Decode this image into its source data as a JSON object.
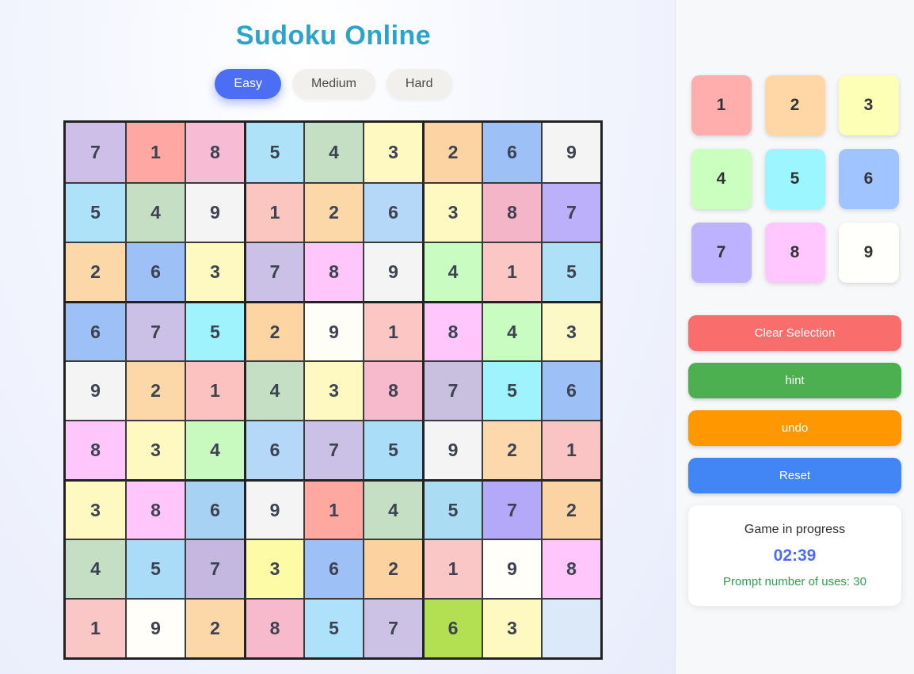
{
  "header": {
    "title": "Sudoku Online"
  },
  "difficulty": {
    "options": [
      {
        "label": "Easy",
        "active": true
      },
      {
        "label": "Medium",
        "active": false
      },
      {
        "label": "Hard",
        "active": false
      }
    ]
  },
  "board": {
    "values": [
      [
        "7",
        "1",
        "8",
        "5",
        "4",
        "3",
        "2",
        "6",
        "9"
      ],
      [
        "5",
        "4",
        "9",
        "1",
        "2",
        "6",
        "3",
        "8",
        "7"
      ],
      [
        "2",
        "6",
        "3",
        "7",
        "8",
        "9",
        "4",
        "1",
        "5"
      ],
      [
        "6",
        "7",
        "5",
        "2",
        "9",
        "1",
        "8",
        "4",
        "3"
      ],
      [
        "9",
        "2",
        "1",
        "4",
        "3",
        "8",
        "7",
        "5",
        "6"
      ],
      [
        "8",
        "3",
        "4",
        "6",
        "7",
        "5",
        "9",
        "2",
        "1"
      ],
      [
        "3",
        "8",
        "6",
        "9",
        "1",
        "4",
        "5",
        "7",
        "2"
      ],
      [
        "4",
        "5",
        "7",
        "3",
        "6",
        "2",
        "1",
        "9",
        "8"
      ],
      [
        "1",
        "9",
        "2",
        "8",
        "5",
        "7",
        "6",
        "3",
        ""
      ]
    ],
    "colors": [
      [
        "#cdbfe8",
        "#ffa8a3",
        "#f7bcd4",
        "#aee2f8",
        "#c5dfc5",
        "#fdf9c0",
        "#fcd3a2",
        "#9dc1f7",
        "#f4f4f4"
      ],
      [
        "#aee2f8",
        "#c5dfc5",
        "#f4f4f4",
        "#fbc6c0",
        "#fcd8a8",
        "#b5d7f8",
        "#fdf9c0",
        "#f5b5c9",
        "#bcb0fa"
      ],
      [
        "#fcd8a8",
        "#9dc1f7",
        "#fdf9c0",
        "#cbc0e6",
        "#fec6fb",
        "#f4f4f4",
        "#c8fcc0",
        "#fbc6c4",
        "#aee0f8"
      ],
      [
        "#9dc1f7",
        "#cbc0e6",
        "#9ef3fd",
        "#fcd5a2",
        "#fffef6",
        "#fbc6c4",
        "#fec6fb",
        "#c8fcc0",
        "#fdf9c6"
      ],
      [
        "#f4f4f4",
        "#fcd8a8",
        "#fbc2c0",
        "#c5dfc5",
        "#fdf9c0",
        "#f7b9cc",
        "#c9c0e0",
        "#9ef3fd",
        "#9dc1f7"
      ],
      [
        "#fec6fb",
        "#fdf9c0",
        "#c8fac0",
        "#b5d7f8",
        "#cbc0e6",
        "#aadef8",
        "#f4f4f4",
        "#fcd8ac",
        "#fbc4c4"
      ],
      [
        "#fdf9c0",
        "#fec6fb",
        "#a8d2f4",
        "#f4f4f4",
        "#ffa8a0",
        "#c5dfc5",
        "#aadcf4",
        "#b4a8f8",
        "#fcd4a4"
      ],
      [
        "#c5dfc5",
        "#aadcf8",
        "#c4b8e0",
        "#fdfba6",
        "#9dc1f7",
        "#fcd2a0",
        "#fbc6c6",
        "#fffef8",
        "#fec6fb"
      ],
      [
        "#fbc6c6",
        "#fffef8",
        "#fcd8a8",
        "#f7b9cc",
        "#aee2fa",
        "#cbc2e6",
        "#b2e052",
        "#fdf9c0",
        "#dbe9f8"
      ]
    ]
  },
  "numberpad": {
    "tiles": [
      {
        "label": "1",
        "color": "#ffadad"
      },
      {
        "label": "2",
        "color": "#ffd6a5"
      },
      {
        "label": "3",
        "color": "#fdffb6"
      },
      {
        "label": "4",
        "color": "#caffbf"
      },
      {
        "label": "5",
        "color": "#9bf6ff"
      },
      {
        "label": "6",
        "color": "#a0c4ff"
      },
      {
        "label": "7",
        "color": "#bdb2ff"
      },
      {
        "label": "8",
        "color": "#ffc6ff"
      },
      {
        "label": "9",
        "color": "#fffffc"
      }
    ]
  },
  "actions": {
    "buttons": [
      {
        "id": "clear-selection",
        "label": "Clear Selection",
        "color": "#f96d6d"
      },
      {
        "id": "hint",
        "label": "hint",
        "color": "#4caf50"
      },
      {
        "id": "undo",
        "label": "undo",
        "color": "#ff9800"
      },
      {
        "id": "reset",
        "label": "Reset",
        "color": "#4285f4"
      }
    ]
  },
  "status": {
    "heading": "Game in progress",
    "timer": "02:39",
    "prompt": "Prompt number of uses: 30"
  },
  "theme": {
    "title_color": "#2aa4cb",
    "active_difficulty_color": "#4c6ef5",
    "timer_color": "#4f6bf5",
    "prompt_color": "#2f9e50",
    "highlight_cell_color": "#b2e052",
    "empty_selected_cell_color": "#dbe9f8"
  }
}
